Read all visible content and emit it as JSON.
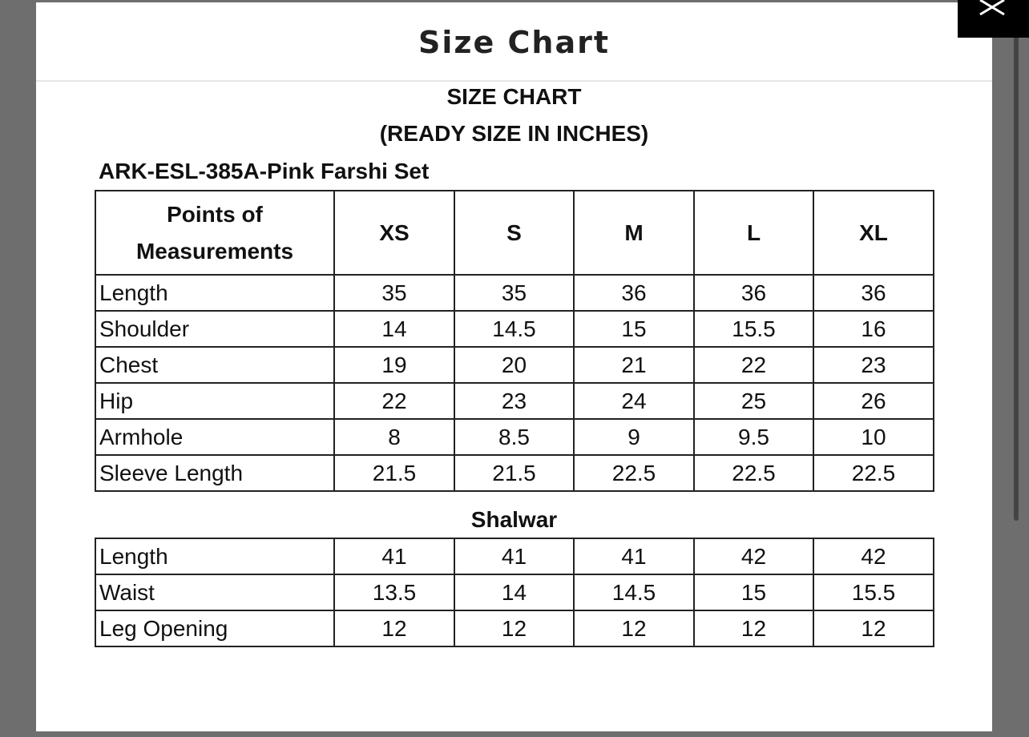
{
  "modal": {
    "title": "Size Chart"
  },
  "size_chart": {
    "heading": "SIZE CHART",
    "subheading": "(READY SIZE IN INCHES)",
    "product": "ARK-ESL-385A-Pink Farshi Set",
    "header": [
      "Points of Measurements",
      "XS",
      "S",
      "M",
      "L",
      "XL"
    ],
    "rows": [
      [
        "Length",
        35,
        35,
        36,
        36,
        36
      ],
      [
        "Shoulder",
        14,
        14.5,
        15,
        15.5,
        16
      ],
      [
        "Chest",
        19,
        20,
        21,
        22,
        23
      ],
      [
        "Hip",
        22,
        23,
        24,
        25,
        26
      ],
      [
        "Armhole",
        8,
        8.5,
        9,
        9.5,
        10
      ],
      [
        "Sleeve Length",
        21.5,
        21.5,
        22.5,
        22.5,
        22.5
      ]
    ],
    "section": "Shalwar",
    "section_rows": [
      [
        "Length",
        41,
        41,
        41,
        42,
        42
      ],
      [
        "Waist",
        13.5,
        14,
        14.5,
        15,
        15.5
      ],
      [
        "Leg Opening",
        12,
        12,
        12,
        12,
        12
      ]
    ]
  }
}
